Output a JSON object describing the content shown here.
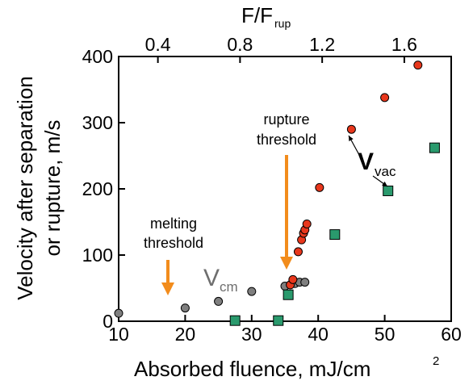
{
  "chart_data": {
    "type": "scatter",
    "x_axis": {
      "label_main": "Absorbed fluence, mJ/cm",
      "label_sup": "2",
      "range": [
        10,
        60
      ],
      "ticks": [
        10,
        20,
        30,
        40,
        50,
        60
      ]
    },
    "y_axis": {
      "label_line1": "Velocity after separation",
      "label_line2": "or rupture, m/s",
      "range": [
        0,
        400
      ],
      "ticks": [
        0,
        100,
        200,
        300,
        400
      ]
    },
    "top_axis": {
      "label_main": "F/F",
      "label_sub": "rup",
      "ticks": [
        "0.4",
        "0.8",
        "1.2",
        "1.6"
      ],
      "tick_positions": [
        15.9,
        28.25,
        40.6,
        52.95
      ]
    },
    "series": [
      {
        "marker": "circle",
        "color": "#7f7f7f",
        "points": [
          {
            "x": 10,
            "y": 12
          },
          {
            "x": 20,
            "y": 20
          },
          {
            "x": 25,
            "y": 30
          },
          {
            "x": 30,
            "y": 45
          },
          {
            "x": 35,
            "y": 53
          },
          {
            "x": 36.5,
            "y": 57
          },
          {
            "x": 37.2,
            "y": 59
          },
          {
            "x": 38,
            "y": 59
          }
        ]
      },
      {
        "marker": "circle",
        "color": "#e8371c",
        "points": [
          {
            "x": 35.8,
            "y": 55
          },
          {
            "x": 36.2,
            "y": 63
          },
          {
            "x": 37,
            "y": 105
          },
          {
            "x": 37.5,
            "y": 123
          },
          {
            "x": 37.8,
            "y": 133
          },
          {
            "x": 38,
            "y": 138
          },
          {
            "x": 38.3,
            "y": 147
          },
          {
            "x": 40.2,
            "y": 202
          },
          {
            "x": 45,
            "y": 290
          },
          {
            "x": 50,
            "y": 338
          },
          {
            "x": 55,
            "y": 387
          }
        ]
      },
      {
        "marker": "square",
        "color": "#2a9a6d",
        "points": [
          {
            "x": 27.5,
            "y": 1
          },
          {
            "x": 34,
            "y": 1
          },
          {
            "x": 35.5,
            "y": 40
          },
          {
            "x": 42.5,
            "y": 131
          },
          {
            "x": 50.5,
            "y": 197
          },
          {
            "x": 57.5,
            "y": 262
          }
        ]
      }
    ],
    "annotations": {
      "melting_line1": "melting",
      "melting_line2": "threshold",
      "rupture_line1": "rupture",
      "rupture_line2": "threshold",
      "vcm_main": "V",
      "vcm_sub": "cm",
      "vvac_main": "V",
      "vvac_sub": "vac",
      "arrow_color": "#f28c1c",
      "vcm_color": "#6e6e6e"
    }
  }
}
